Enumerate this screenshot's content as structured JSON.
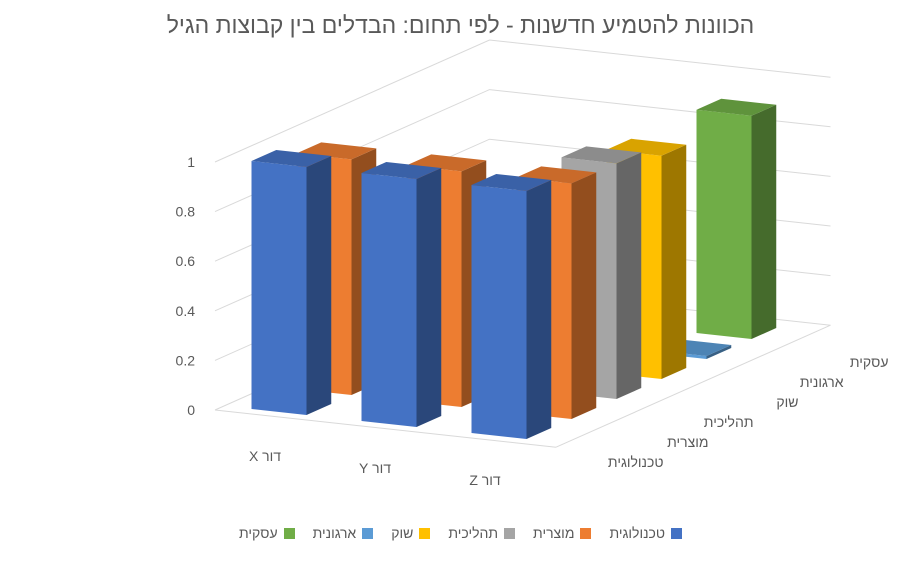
{
  "chart_data": {
    "type": "bar",
    "subtype": "3d-column",
    "title": "הכוונות להטמיע חדשנות - לפי תחום: הבדלים בין קבוצות הגיל",
    "categories": [
      "דור X",
      "דור Y",
      "דור Z"
    ],
    "yticks": [
      "0",
      "0.2",
      "0.4",
      "0.6",
      "0.8",
      "1"
    ],
    "ylim": [
      0,
      1
    ],
    "grid": true,
    "legend_position": "bottom",
    "series": [
      {
        "name": "טכנולוגית",
        "color": "#4472C4",
        "values": [
          1.0,
          1.0,
          1.0
        ]
      },
      {
        "name": "מוצרית",
        "color": "#ED7D31",
        "values": [
          0.95,
          0.95,
          0.95
        ]
      },
      {
        "name": "תהליכית",
        "color": "#A5A5A5",
        "values": [
          0.0,
          0.0,
          0.95
        ]
      },
      {
        "name": "שוק",
        "color": "#FFC000",
        "values": [
          0.0,
          0.0,
          0.9
        ]
      },
      {
        "name": "ארגונית",
        "color": "#5B9BD5",
        "values": [
          0.0,
          0.0,
          0.0
        ]
      },
      {
        "name": "עסקית",
        "color": "#70AD47",
        "values": [
          0.0,
          0.0,
          0.9
        ]
      }
    ]
  }
}
